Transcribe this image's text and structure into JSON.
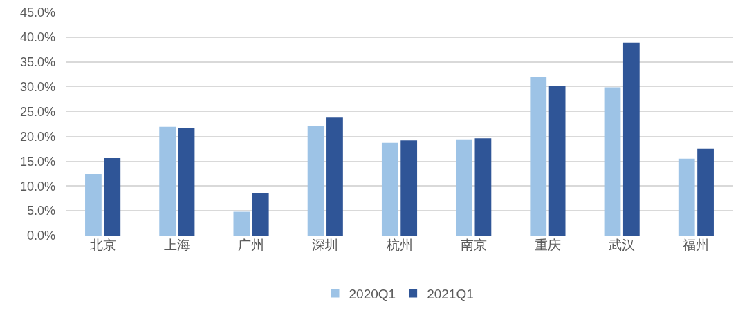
{
  "chart_data": {
    "type": "bar",
    "categories": [
      "北京",
      "上海",
      "广州",
      "深圳",
      "杭州",
      "南京",
      "重庆",
      "武汉",
      "福州"
    ],
    "series": [
      {
        "name": "2020Q1",
        "color": "#9dc3e6",
        "values": [
          12.4,
          21.9,
          4.8,
          22.1,
          18.7,
          19.4,
          32.0,
          29.9,
          15.5
        ]
      },
      {
        "name": "2021Q1",
        "color": "#2f5597",
        "values": [
          15.6,
          21.6,
          8.5,
          23.8,
          19.2,
          19.6,
          30.2,
          38.9,
          17.6
        ]
      }
    ],
    "ylim": [
      0,
      45
    ],
    "yticks": [
      {
        "value": 0,
        "label": "0.0%"
      },
      {
        "value": 5,
        "label": "5.0%"
      },
      {
        "value": 10,
        "label": "10.0%"
      },
      {
        "value": 15,
        "label": "15.0%"
      },
      {
        "value": 20,
        "label": "20.0%"
      },
      {
        "value": 25,
        "label": "25.0%"
      },
      {
        "value": 30,
        "label": "30.0%"
      },
      {
        "value": 35,
        "label": "35.0%"
      },
      {
        "value": 40,
        "label": "40.0%"
      },
      {
        "value": 45,
        "label": "45.0%"
      }
    ],
    "grid": "y",
    "legend": "bottom"
  }
}
